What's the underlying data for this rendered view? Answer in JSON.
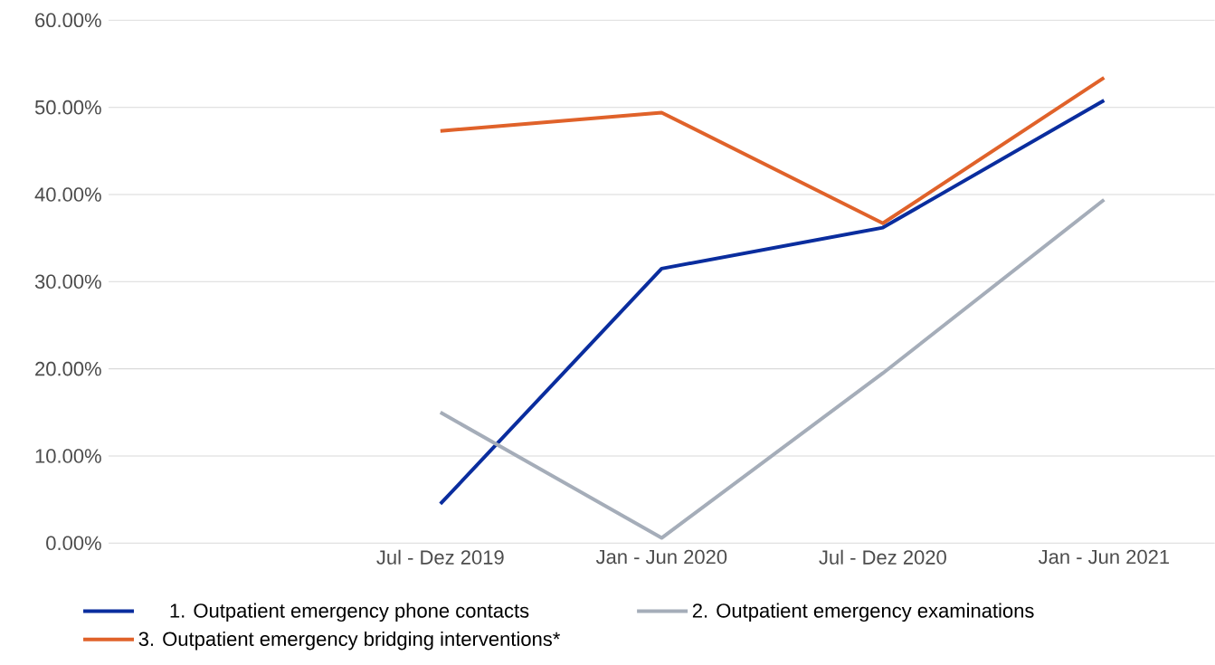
{
  "chart_data": {
    "type": "line",
    "categories": [
      null,
      "Jul - Dez 2019",
      "Jan - Jun 2020",
      "Jul - Dez 2020",
      "Jan - Jun 2021"
    ],
    "series": [
      {
        "name": "1. Outpatient emergency phone contacts",
        "color": "#0a2d9e",
        "values": [
          null,
          4.5,
          31.5,
          36.2,
          50.8
        ]
      },
      {
        "name": "2. Outpatient emergency examinations",
        "color": "#a5adb9",
        "values": [
          null,
          15.0,
          0.6,
          19.5,
          39.4
        ]
      },
      {
        "name": "3. Outpatient emergency bridging interventions*",
        "color": "#e0622a",
        "values": [
          null,
          47.3,
          49.4,
          36.7,
          53.4
        ]
      }
    ],
    "ylim": [
      0,
      60
    ],
    "yticks": [
      {
        "value": 0,
        "label": "0.00%"
      },
      {
        "value": 10,
        "label": "10.00%"
      },
      {
        "value": 20,
        "label": "20.00%"
      },
      {
        "value": 30,
        "label": "30.00%"
      },
      {
        "value": 40,
        "label": "40.00%"
      },
      {
        "value": 50,
        "label": "50.00%"
      },
      {
        "value": 60,
        "label": "60.00%"
      }
    ],
    "grid": "y",
    "legend": "bottom",
    "marker": "none",
    "line_style": "solid"
  }
}
